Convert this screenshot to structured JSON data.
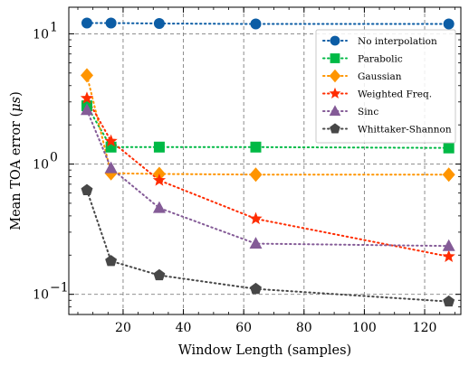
{
  "chart_data": {
    "type": "line",
    "xlabel": "Window Length (samples)",
    "ylabel": "Mean TOA error (",
    "ylabel_symbol": "μs",
    "ylabel_close": ")",
    "yscale": "log",
    "xlim": [
      2,
      132
    ],
    "ylim": [
      0.07,
      16
    ],
    "grid": true,
    "legend_position": "top-right",
    "x_ticks": [
      20,
      40,
      60,
      80,
      100,
      120
    ],
    "x_tick_labels": [
      "20",
      "40",
      "60",
      "80",
      "100",
      "120"
    ],
    "y_ticks": [
      0.1,
      1,
      10
    ],
    "y_tick_base": "10",
    "y_tick_exponents": [
      "−1",
      "0",
      "1"
    ],
    "x": [
      8,
      16,
      32,
      64,
      128
    ],
    "series": [
      {
        "name": "No interpolation",
        "values": [
          12.1,
          12.1,
          12.0,
          11.9,
          11.9
        ],
        "color": "#0C5DA5",
        "marker": "circle"
      },
      {
        "name": "Parabolic",
        "values": [
          2.8,
          1.35,
          1.35,
          1.35,
          1.33
        ],
        "color": "#00B945",
        "marker": "square"
      },
      {
        "name": "Gaussian",
        "values": [
          4.8,
          0.85,
          0.84,
          0.83,
          0.83
        ],
        "color": "#FF9500",
        "marker": "diamond"
      },
      {
        "name": "Weighted Freq.",
        "values": [
          3.2,
          1.5,
          0.75,
          0.38,
          0.195
        ],
        "color": "#FF2C00",
        "marker": "star"
      },
      {
        "name": "Sinc",
        "values": [
          2.6,
          0.93,
          0.46,
          0.245,
          0.235
        ],
        "color": "#845B97",
        "marker": "triangle"
      },
      {
        "name": "Whittaker-Shannon",
        "values": [
          0.63,
          0.18,
          0.14,
          0.11,
          0.088
        ],
        "color": "#474747",
        "marker": "pentagon"
      }
    ]
  }
}
